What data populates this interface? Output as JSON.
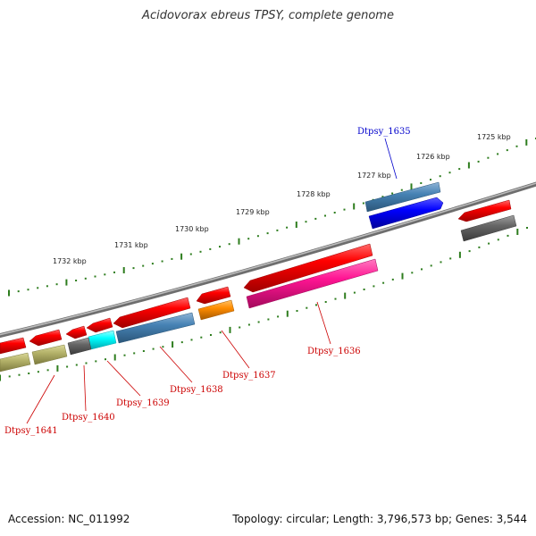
{
  "title": "Acidovorax ebreus TPSY, complete genome",
  "footer": {
    "accession": "Accession: NC_011992",
    "topology": "Topology: circular; Length: 3,796,573 bp; Genes: 3,544"
  },
  "scale_ticks": [
    "1725 kbp",
    "1726 kbp",
    "1727 kbp",
    "1728 kbp",
    "1729 kbp",
    "1730 kbp",
    "1731 kbp",
    "1732 kbp"
  ],
  "gene_labels": {
    "g1635": "Dtpsy_1635",
    "g1636": "Dtpsy_1636",
    "g1637": "Dtpsy_1637",
    "g1638": "Dtpsy_1638",
    "g1639": "Dtpsy_1639",
    "g1640": "Dtpsy_1640",
    "g1641": "Dtpsy_1641"
  },
  "colors": {
    "forward_label": "#0000cc",
    "reverse_label": "#cc0000",
    "backbone": "#888888",
    "tick_marks": "#2e7d1e",
    "cds_red": "#ff0000",
    "steelblue": "#4682b4",
    "blue": "#0000ff",
    "pink": "#ff1493",
    "orange": "#ff8c00",
    "cyan": "#00ffff",
    "khaki": "#b5b36a",
    "grey": "#666666"
  }
}
